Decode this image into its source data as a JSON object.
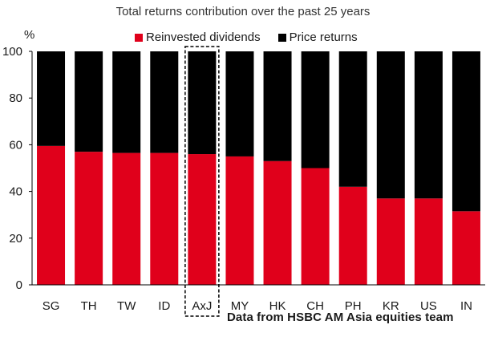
{
  "chart_data": {
    "type": "bar",
    "stacked": true,
    "title": "Total returns contribution over the past 25 years",
    "ylabel": "%",
    "xlabel": "",
    "ylim": [
      0,
      100
    ],
    "yticks": [
      0,
      20,
      40,
      60,
      80,
      100
    ],
    "categories": [
      "SG",
      "TH",
      "TW",
      "ID",
      "AxJ",
      "MY",
      "HK",
      "CH",
      "PH",
      "KR",
      "US",
      "IN"
    ],
    "highlighted_category": "AxJ",
    "series": [
      {
        "name": "Reinvested dividends",
        "color": "#e0001b",
        "values": [
          59.5,
          57,
          56.5,
          56.5,
          56,
          55,
          53,
          50,
          42,
          37,
          37,
          31.5
        ]
      },
      {
        "name": "Price returns",
        "color": "#000000",
        "values": [
          40.5,
          43,
          43.5,
          43.5,
          44,
          45,
          47,
          50,
          58,
          63,
          63,
          68.5
        ]
      }
    ],
    "legend_position": "top",
    "grid": false,
    "source_note": "Data from HSBC AM Asia equities team"
  }
}
